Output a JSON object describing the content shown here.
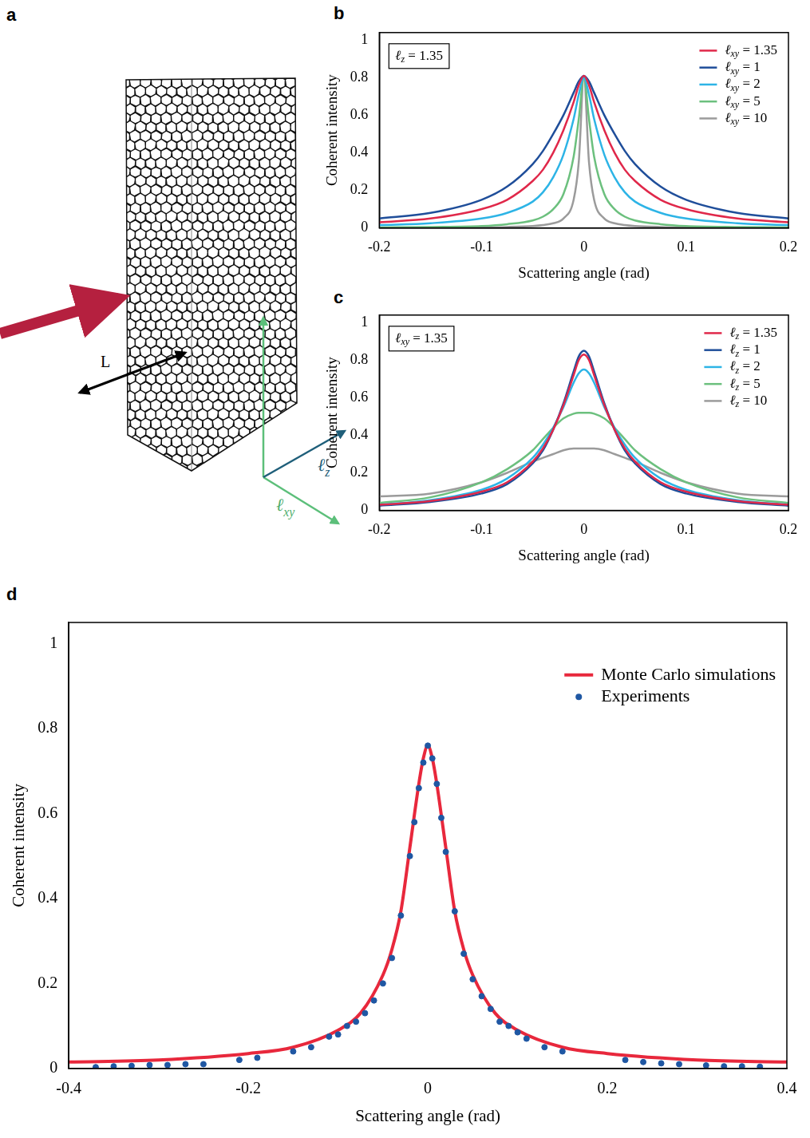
{
  "diagram": {
    "panel": "a",
    "length_label": "L",
    "axis_z_label": "ℓz",
    "axis_xy_label": "ℓxy"
  },
  "chart_data": [
    {
      "panel": "b",
      "type": "line",
      "annotations": [
        "ℓz = 1.35"
      ],
      "x_label": "Scattering angle (rad)",
      "y_label": "Coherent intensity",
      "x": [
        -0.2,
        -0.15,
        -0.1,
        -0.075,
        -0.05,
        -0.04,
        -0.03,
        -0.02,
        -0.01,
        -0.005,
        0,
        0.005,
        0.01,
        0.02,
        0.03,
        0.04,
        0.05,
        0.075,
        0.1,
        0.15,
        0.2
      ],
      "series": [
        {
          "name": "ℓxy = 1.35",
          "color": "#e0284a",
          "values": [
            0.03,
            0.05,
            0.1,
            0.15,
            0.25,
            0.31,
            0.4,
            0.52,
            0.67,
            0.76,
            0.81,
            0.76,
            0.67,
            0.52,
            0.4,
            0.31,
            0.25,
            0.15,
            0.1,
            0.05,
            0.03
          ]
        },
        {
          "name": "ℓxy = 1",
          "color": "#1f4e9a",
          "values": [
            0.05,
            0.08,
            0.15,
            0.22,
            0.34,
            0.41,
            0.5,
            0.6,
            0.72,
            0.78,
            0.81,
            0.78,
            0.72,
            0.6,
            0.5,
            0.41,
            0.34,
            0.22,
            0.15,
            0.08,
            0.05
          ]
        },
        {
          "name": "ℓxy = 2",
          "color": "#2db4e6",
          "values": [
            0.015,
            0.025,
            0.05,
            0.08,
            0.14,
            0.19,
            0.27,
            0.39,
            0.58,
            0.71,
            0.8,
            0.71,
            0.58,
            0.39,
            0.27,
            0.19,
            0.14,
            0.08,
            0.05,
            0.025,
            0.015
          ]
        },
        {
          "name": "ℓxy = 5",
          "color": "#6cc07e",
          "values": [
            0.003,
            0.005,
            0.01,
            0.02,
            0.04,
            0.06,
            0.1,
            0.18,
            0.38,
            0.58,
            0.8,
            0.58,
            0.38,
            0.18,
            0.1,
            0.06,
            0.04,
            0.02,
            0.01,
            0.005,
            0.003
          ]
        },
        {
          "name": "ℓxy = 10",
          "color": "#9b9b9b",
          "values": [
            0.001,
            0.002,
            0.003,
            0.005,
            0.01,
            0.015,
            0.025,
            0.05,
            0.15,
            0.35,
            0.8,
            0.35,
            0.15,
            0.05,
            0.025,
            0.015,
            0.01,
            0.005,
            0.003,
            0.002,
            0.001
          ]
        }
      ],
      "xlim": [
        -0.2,
        0.2
      ],
      "xticks": [
        -0.2,
        -0.1,
        0,
        0.1,
        0.2
      ],
      "ylim": [
        0,
        1.04
      ],
      "yticks": [
        0,
        0.2,
        0.4,
        0.6,
        0.8,
        1
      ],
      "grid": false,
      "legend": "upper right"
    },
    {
      "panel": "c",
      "type": "line",
      "annotations": [
        "ℓxy = 1.35"
      ],
      "x_label": "Scattering angle (rad)",
      "y_label": "Coherent intensity",
      "x": [
        -0.2,
        -0.15,
        -0.1,
        -0.075,
        -0.05,
        -0.04,
        -0.03,
        -0.02,
        -0.01,
        -0.005,
        0,
        0.005,
        0.01,
        0.02,
        0.03,
        0.04,
        0.05,
        0.075,
        0.1,
        0.15,
        0.2
      ],
      "series": [
        {
          "name": "ℓz = 1.35",
          "color": "#e0284a",
          "values": [
            0.03,
            0.05,
            0.1,
            0.15,
            0.26,
            0.33,
            0.43,
            0.56,
            0.72,
            0.8,
            0.83,
            0.8,
            0.72,
            0.56,
            0.43,
            0.33,
            0.26,
            0.15,
            0.1,
            0.05,
            0.03
          ]
        },
        {
          "name": "ℓz = 1",
          "color": "#1f4e9a",
          "values": [
            0.025,
            0.045,
            0.09,
            0.14,
            0.25,
            0.32,
            0.43,
            0.57,
            0.74,
            0.82,
            0.85,
            0.82,
            0.74,
            0.57,
            0.43,
            0.32,
            0.25,
            0.14,
            0.09,
            0.045,
            0.025
          ]
        },
        {
          "name": "ℓz = 2",
          "color": "#2db4e6",
          "values": [
            0.03,
            0.055,
            0.11,
            0.17,
            0.28,
            0.35,
            0.44,
            0.55,
            0.68,
            0.73,
            0.75,
            0.73,
            0.68,
            0.55,
            0.44,
            0.35,
            0.28,
            0.17,
            0.11,
            0.055,
            0.03
          ]
        },
        {
          "name": "ℓz = 5",
          "color": "#6cc07e",
          "values": [
            0.04,
            0.07,
            0.15,
            0.22,
            0.32,
            0.38,
            0.44,
            0.49,
            0.515,
            0.52,
            0.52,
            0.52,
            0.515,
            0.49,
            0.44,
            0.38,
            0.32,
            0.22,
            0.15,
            0.07,
            0.04
          ]
        },
        {
          "name": "ℓz = 10",
          "color": "#9b9b9b",
          "values": [
            0.075,
            0.09,
            0.15,
            0.2,
            0.26,
            0.28,
            0.3,
            0.32,
            0.33,
            0.33,
            0.33,
            0.33,
            0.33,
            0.32,
            0.3,
            0.28,
            0.26,
            0.2,
            0.15,
            0.09,
            0.075
          ]
        }
      ],
      "xlim": [
        -0.2,
        0.2
      ],
      "xticks": [
        -0.2,
        -0.1,
        0,
        0.1,
        0.2
      ],
      "ylim": [
        0,
        1.04
      ],
      "yticks": [
        0,
        0.2,
        0.4,
        0.6,
        0.8,
        1
      ],
      "grid": false,
      "legend": "upper right"
    },
    {
      "panel": "d",
      "type": "line",
      "x_label": "Scattering angle (rad)",
      "y_label": "Coherent intensity",
      "series": [
        {
          "name": "Monte Carlo simulations",
          "color": "#e8283c",
          "type": "line",
          "line_style": "solid",
          "x": [
            -0.4,
            -0.3,
            -0.2,
            -0.15,
            -0.1,
            -0.075,
            -0.05,
            -0.04,
            -0.03,
            -0.02,
            -0.01,
            -0.005,
            0,
            0.005,
            0.01,
            0.02,
            0.03,
            0.04,
            0.05,
            0.075,
            0.1,
            0.15,
            0.2,
            0.3,
            0.4
          ],
          "values": [
            0.015,
            0.02,
            0.035,
            0.05,
            0.09,
            0.13,
            0.22,
            0.28,
            0.37,
            0.52,
            0.67,
            0.73,
            0.76,
            0.73,
            0.67,
            0.52,
            0.37,
            0.28,
            0.22,
            0.13,
            0.09,
            0.05,
            0.035,
            0.02,
            0.015
          ]
        },
        {
          "name": "Experiments",
          "color": "#1f57a3",
          "type": "scatter",
          "marker": "circle",
          "x": [
            -0.37,
            -0.35,
            -0.33,
            -0.31,
            -0.29,
            -0.27,
            -0.25,
            -0.21,
            -0.19,
            -0.15,
            -0.13,
            -0.11,
            -0.1,
            -0.09,
            -0.08,
            -0.07,
            -0.06,
            -0.05,
            -0.04,
            -0.03,
            -0.02,
            -0.015,
            -0.01,
            -0.005,
            0,
            0.005,
            0.01,
            0.015,
            0.02,
            0.03,
            0.04,
            0.05,
            0.06,
            0.07,
            0.08,
            0.09,
            0.1,
            0.11,
            0.13,
            0.15,
            0.22,
            0.24,
            0.26,
            0.28,
            0.31,
            0.33,
            0.35,
            0.37
          ],
          "values": [
            0.003,
            0.005,
            0.006,
            0.008,
            0.008,
            0.01,
            0.01,
            0.02,
            0.025,
            0.04,
            0.05,
            0.075,
            0.08,
            0.1,
            0.11,
            0.13,
            0.16,
            0.2,
            0.26,
            0.36,
            0.5,
            0.58,
            0.66,
            0.72,
            0.76,
            0.73,
            0.67,
            0.59,
            0.51,
            0.37,
            0.27,
            0.21,
            0.17,
            0.14,
            0.11,
            0.1,
            0.085,
            0.07,
            0.05,
            0.04,
            0.02,
            0.015,
            0.012,
            0.01,
            0.007,
            0.005,
            0.005,
            0.004
          ]
        }
      ],
      "xlim": [
        -0.4,
        0.4
      ],
      "xticks": [
        -0.4,
        -0.2,
        0,
        0.2,
        0.4
      ],
      "ylim": [
        0,
        1.05
      ],
      "yticks": [
        0,
        0.2,
        0.4,
        0.6,
        0.8,
        1
      ],
      "grid": false,
      "legend": "upper right"
    }
  ]
}
